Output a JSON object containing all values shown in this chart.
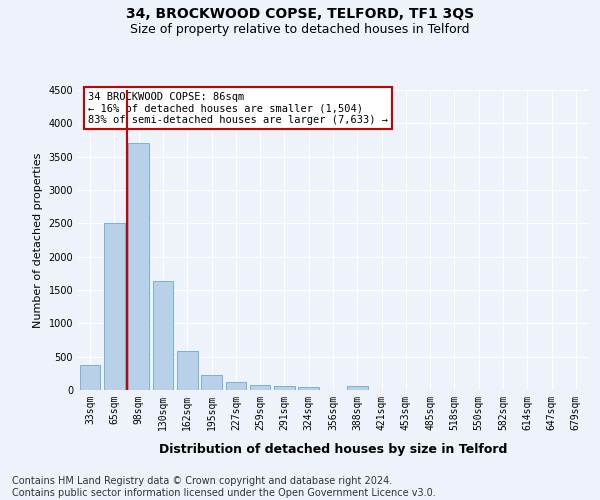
{
  "title": "34, BROCKWOOD COPSE, TELFORD, TF1 3QS",
  "subtitle": "Size of property relative to detached houses in Telford",
  "xlabel": "Distribution of detached houses by size in Telford",
  "ylabel": "Number of detached properties",
  "categories": [
    "33sqm",
    "65sqm",
    "98sqm",
    "130sqm",
    "162sqm",
    "195sqm",
    "227sqm",
    "259sqm",
    "291sqm",
    "324sqm",
    "356sqm",
    "388sqm",
    "421sqm",
    "453sqm",
    "485sqm",
    "518sqm",
    "550sqm",
    "582sqm",
    "614sqm",
    "647sqm",
    "679sqm"
  ],
  "values": [
    370,
    2510,
    3710,
    1630,
    590,
    225,
    115,
    75,
    55,
    40,
    0,
    65,
    0,
    0,
    0,
    0,
    0,
    0,
    0,
    0,
    0
  ],
  "bar_color": "#b8d0e8",
  "bar_edgecolor": "#6aaad4",
  "vline_color": "#cc0000",
  "vline_x": 1.5,
  "ylim": [
    0,
    4500
  ],
  "yticks": [
    0,
    500,
    1000,
    1500,
    2000,
    2500,
    3000,
    3500,
    4000,
    4500
  ],
  "annotation_text": "34 BROCKWOOD COPSE: 86sqm\n← 16% of detached houses are smaller (1,504)\n83% of semi-detached houses are larger (7,633) →",
  "annotation_box_facecolor": "#ffffff",
  "annotation_box_edgecolor": "#cc0000",
  "footer_line1": "Contains HM Land Registry data © Crown copyright and database right 2024.",
  "footer_line2": "Contains public sector information licensed under the Open Government Licence v3.0.",
  "background_color": "#eef2fa",
  "grid_color": "#ffffff",
  "title_fontsize": 10,
  "subtitle_fontsize": 9,
  "ylabel_fontsize": 8,
  "xlabel_fontsize": 9,
  "tick_fontsize": 7,
  "annotation_fontsize": 7.5,
  "footer_fontsize": 7
}
